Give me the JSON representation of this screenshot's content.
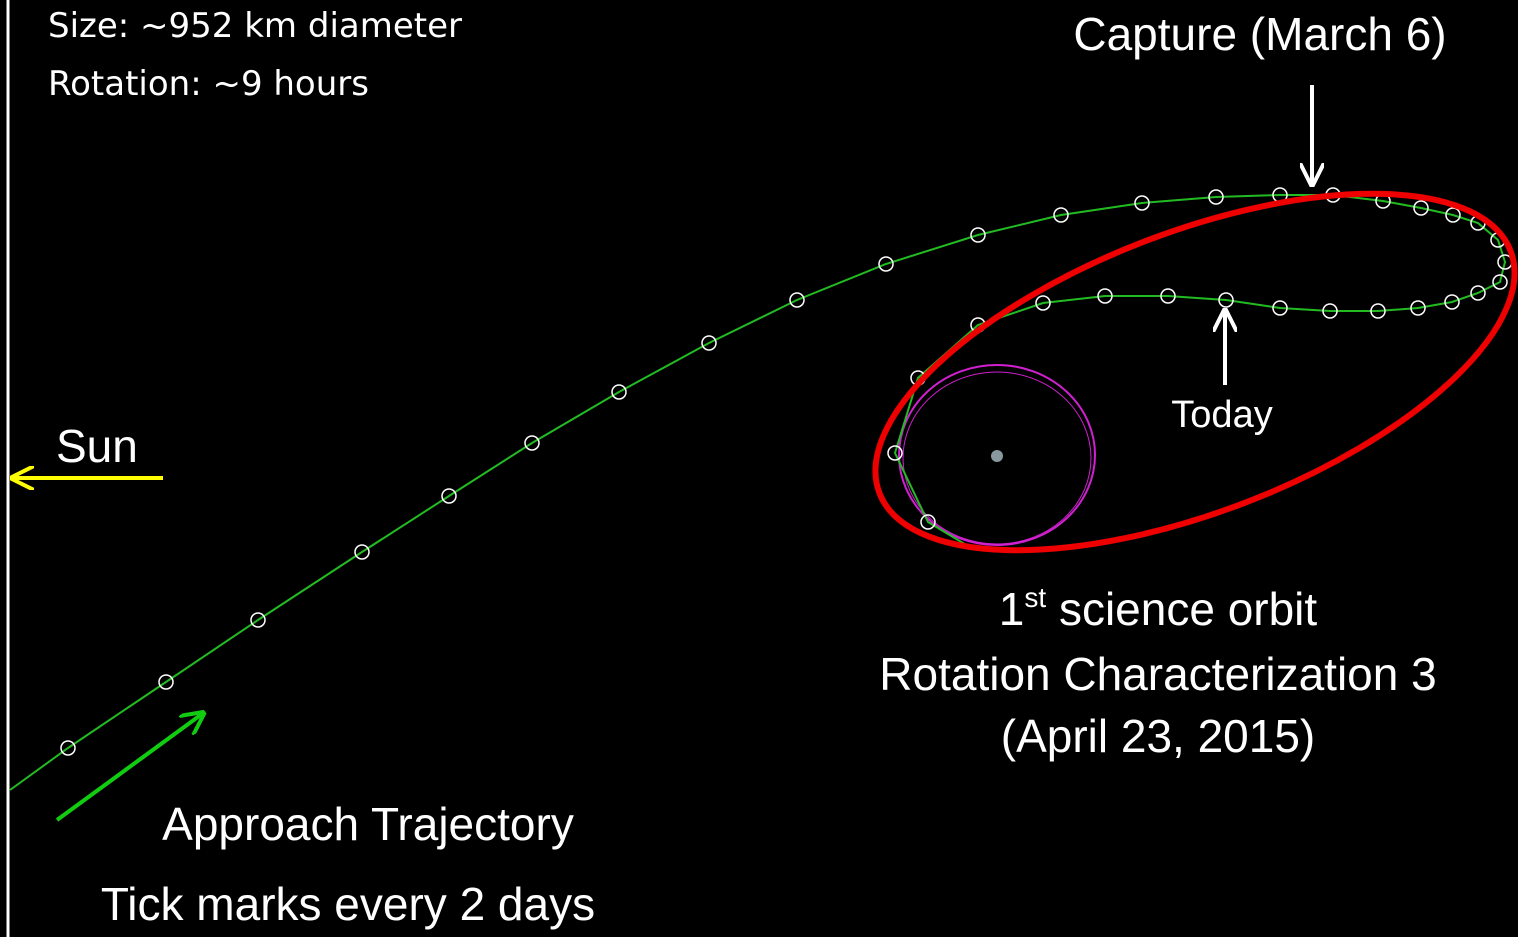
{
  "info": {
    "size": "Size: ~952 km diameter",
    "rotation": "Rotation: ~9 hours"
  },
  "labels": {
    "capture": "Capture (March 6)",
    "sun": "Sun",
    "today": "Today",
    "orbit": {
      "ordinal": "1",
      "suffix": "st",
      "name": " science orbit",
      "line2": "Rotation Characterization 3",
      "line3": "(April 23, 2015)"
    },
    "approach": "Approach Trajectory",
    "ticks": "Tick marks every 2 days"
  }
}
